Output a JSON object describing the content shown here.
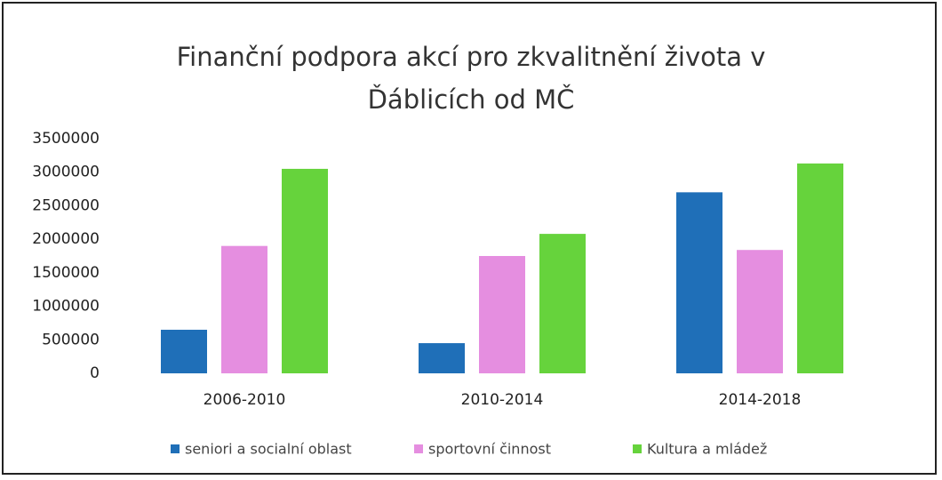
{
  "chart_data": {
    "type": "bar",
    "title": "Finanční podpora akcí pro zkvalitnění života v Ďáblicích od MČ",
    "categories": [
      "2006-2010",
      "2010-2014",
      "2014-2018"
    ],
    "series": [
      {
        "name": "seniori a socialní oblast",
        "color": "#1f6fb8",
        "values": [
          650000,
          450000,
          2700000
        ]
      },
      {
        "name": "sportovní  činnost",
        "color": "#e58ee0",
        "values": [
          1900000,
          1750000,
          1840000
        ]
      },
      {
        "name": "Kultura a mládež",
        "color": "#66d33c",
        "values": [
          3050000,
          2080000,
          3130000
        ]
      }
    ],
    "ylim": [
      0,
      3500000
    ],
    "yticks": [
      0,
      500000,
      1000000,
      1500000,
      2000000,
      2500000,
      3000000,
      3500000
    ],
    "grid": false,
    "legend": "bottom"
  }
}
